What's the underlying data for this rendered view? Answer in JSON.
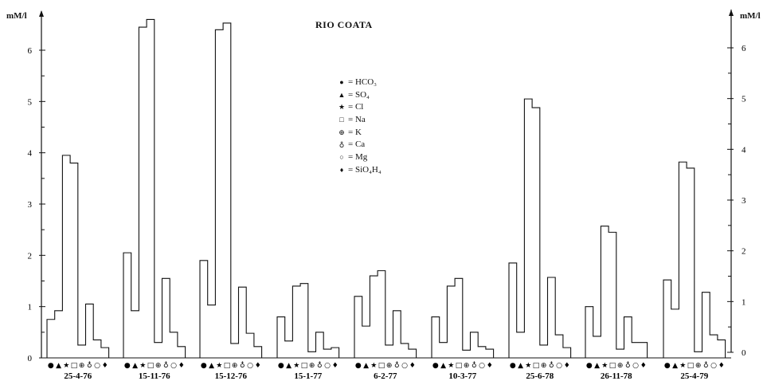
{
  "chart_data": {
    "type": "bar",
    "title": "RIO COATA",
    "ylabel_left": "mM/l",
    "ylabel_right": "mM/l",
    "ylim": [
      0,
      6.8
    ],
    "yticks_left": [
      "0",
      "1",
      "2",
      "3",
      "4",
      "5",
      "6"
    ],
    "yticks_right": [
      "0",
      "1",
      "2",
      "3",
      "4",
      "5",
      "6"
    ],
    "series_symbols": [
      "●",
      "▲",
      "★",
      "□",
      "⊕",
      "♁",
      "○",
      "♦"
    ],
    "legend": [
      {
        "symbol": "●",
        "label": "= HCO₃"
      },
      {
        "symbol": "▲",
        "label": "= SO₄"
      },
      {
        "symbol": "★",
        "label": "= Cl"
      },
      {
        "symbol": "□",
        "label": "= Na"
      },
      {
        "symbol": "⊕",
        "label": "= K"
      },
      {
        "symbol": "♁",
        "label": "= Ca"
      },
      {
        "symbol": "○",
        "label": "= Mg"
      },
      {
        "symbol": "♦",
        "label": "= SiO₄H₄"
      }
    ],
    "categories": [
      "HCO3",
      "SO4",
      "Cl",
      "Na",
      "K",
      "Ca",
      "Mg",
      "SiO4H4"
    ],
    "groups": [
      {
        "date": "25-4-76",
        "values": [
          0.75,
          0.92,
          3.95,
          3.8,
          0.25,
          1.05,
          0.35,
          0.2
        ]
      },
      {
        "date": "15-11-76",
        "values": [
          2.05,
          0.92,
          6.45,
          6.6,
          0.3,
          1.55,
          0.5,
          0.22
        ]
      },
      {
        "date": "15-12-76",
        "values": [
          1.9,
          1.03,
          6.4,
          6.53,
          0.28,
          1.38,
          0.48,
          0.22
        ]
      },
      {
        "date": "15-1-77",
        "values": [
          0.8,
          0.33,
          1.4,
          1.45,
          0.12,
          0.5,
          0.17,
          0.2
        ]
      },
      {
        "date": "6-2-77",
        "values": [
          1.2,
          0.62,
          1.6,
          1.7,
          0.25,
          0.92,
          0.28,
          0.17
        ]
      },
      {
        "date": "10-3-77",
        "values": [
          0.8,
          0.3,
          1.4,
          1.55,
          0.15,
          0.5,
          0.22,
          0.17
        ]
      },
      {
        "date": "25-6-78",
        "values": [
          1.85,
          0.5,
          5.05,
          4.88,
          0.25,
          1.57,
          0.45,
          0.2
        ]
      },
      {
        "date": "26-11-78",
        "values": [
          1.0,
          0.42,
          2.57,
          2.45,
          0.17,
          0.8,
          0.3,
          0.3
        ]
      },
      {
        "date": "25-4-79",
        "values": [
          1.52,
          0.95,
          3.82,
          3.7,
          0.12,
          1.28,
          0.45,
          0.35
        ]
      }
    ]
  }
}
